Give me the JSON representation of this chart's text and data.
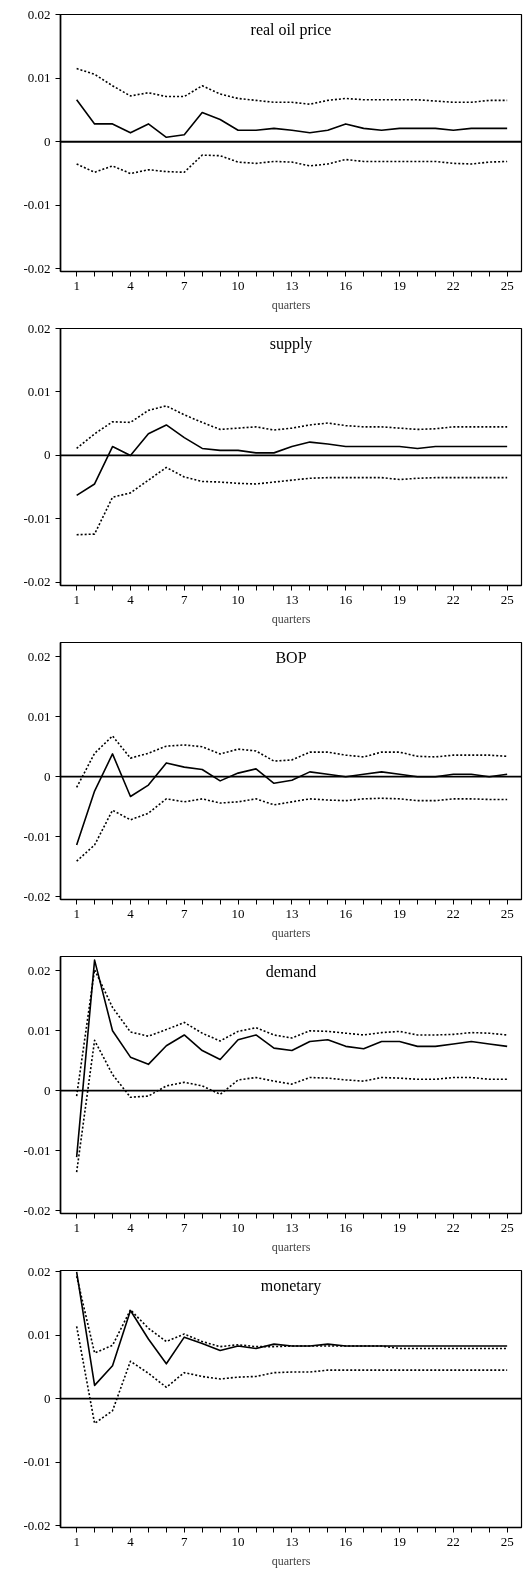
{
  "chart_data": [
    {
      "type": "line",
      "title": "real oil price",
      "xlabel": "quarters",
      "x": [
        1,
        2,
        3,
        4,
        5,
        6,
        7,
        8,
        9,
        10,
        11,
        12,
        13,
        14,
        15,
        16,
        17,
        18,
        19,
        20,
        21,
        22,
        23,
        24,
        25
      ],
      "xlim": [
        0.1,
        25.8
      ],
      "ylim": [
        -0.0204,
        0.02
      ],
      "grid": false,
      "xticks": [
        1,
        {
          "value": 2,
          "label": null
        },
        {
          "value": 3,
          "label": null
        },
        4,
        {
          "value": 5,
          "label": null
        },
        {
          "value": 6,
          "label": null
        },
        7,
        {
          "value": 8,
          "label": null
        },
        {
          "value": 9,
          "label": null
        },
        10,
        {
          "value": 11,
          "label": null
        },
        {
          "value": 12,
          "label": null
        },
        13,
        {
          "value": 14,
          "label": null
        },
        {
          "value": 15,
          "label": null
        },
        16,
        {
          "value": 17,
          "label": null
        },
        {
          "value": 18,
          "label": null
        },
        19,
        {
          "value": 20,
          "label": null
        },
        {
          "value": 21,
          "label": null
        },
        22,
        {
          "value": 23,
          "label": null
        },
        {
          "value": 24,
          "label": null
        },
        25
      ],
      "yticks": [
        -0.02,
        -0.01,
        0,
        0.01,
        0.02
      ],
      "ref_lines": [
        {
          "axis": "y",
          "value": 0,
          "label": null,
          "color": "#000000",
          "line_style": "solid"
        }
      ],
      "series": [
        {
          "color": "#000000",
          "line_style": "solid",
          "values": [
            0.0066,
            0.0028,
            0.0028,
            0.0014,
            0.0028,
            0.0007,
            0.0011,
            0.0046,
            0.0035,
            0.0018,
            0.0018,
            0.0021,
            0.0018,
            0.0014,
            0.0018,
            0.0028,
            0.0021,
            0.0018,
            0.0021,
            0.0021,
            0.0021,
            0.0018,
            0.0021,
            0.0021,
            0.0021
          ]
        },
        {
          "color": "#000000",
          "line_style": "dotted",
          "values": [
            0.0115,
            0.0106,
            0.0088,
            0.0072,
            0.0077,
            0.0071,
            0.0071,
            0.0088,
            0.0075,
            0.0068,
            0.0065,
            0.0062,
            0.0062,
            0.0059,
            0.0065,
            0.0068,
            0.0066,
            0.0066,
            0.0066,
            0.0066,
            0.0064,
            0.0062,
            0.0062,
            0.0065,
            0.0065
          ]
        },
        {
          "color": "#000000",
          "line_style": "dotted",
          "values": [
            -0.0035,
            -0.0048,
            -0.0038,
            -0.005,
            -0.0044,
            -0.0047,
            -0.0048,
            -0.0021,
            -0.0022,
            -0.0032,
            -0.0034,
            -0.0031,
            -0.0032,
            -0.0038,
            -0.0035,
            -0.0028,
            -0.0031,
            -0.0031,
            -0.0031,
            -0.0031,
            -0.0031,
            -0.0034,
            -0.0035,
            -0.0032,
            -0.0031
          ]
        }
      ]
    },
    {
      "type": "line",
      "title": "supply",
      "xlabel": "quarters",
      "x": [
        1,
        2,
        3,
        4,
        5,
        6,
        7,
        8,
        9,
        10,
        11,
        12,
        13,
        14,
        15,
        16,
        17,
        18,
        19,
        20,
        21,
        22,
        23,
        24,
        25
      ],
      "xlim": [
        0.1,
        25.8
      ],
      "ylim": [
        -0.0205,
        0.02
      ],
      "grid": false,
      "xticks": [
        1,
        {
          "value": 2,
          "label": null
        },
        {
          "value": 3,
          "label": null
        },
        4,
        {
          "value": 5,
          "label": null
        },
        {
          "value": 6,
          "label": null
        },
        7,
        {
          "value": 8,
          "label": null
        },
        {
          "value": 9,
          "label": null
        },
        10,
        {
          "value": 11,
          "label": null
        },
        {
          "value": 12,
          "label": null
        },
        13,
        {
          "value": 14,
          "label": null
        },
        {
          "value": 15,
          "label": null
        },
        16,
        {
          "value": 17,
          "label": null
        },
        {
          "value": 18,
          "label": null
        },
        19,
        {
          "value": 20,
          "label": null
        },
        {
          "value": 21,
          "label": null
        },
        22,
        {
          "value": 23,
          "label": null
        },
        {
          "value": 24,
          "label": null
        },
        25
      ],
      "yticks": [
        -0.02,
        -0.01,
        0,
        0.01,
        0.02
      ],
      "ref_lines": [
        {
          "axis": "y",
          "value": 0,
          "label": null,
          "color": "#000000",
          "line_style": "solid"
        }
      ],
      "series": [
        {
          "color": "#000000",
          "line_style": "solid",
          "values": [
            -0.0063,
            -0.0045,
            0.0014,
            0,
            0.0034,
            0.0048,
            0.0028,
            0.0011,
            0.0008,
            0.0008,
            0.0004,
            0.0004,
            0.0014,
            0.0021,
            0.0018,
            0.0014,
            0.0014,
            0.0014,
            0.0014,
            0.0011,
            0.0014,
            0.0014,
            0.0014,
            0.0014,
            0.0014
          ]
        },
        {
          "color": "#000000",
          "line_style": "dotted",
          "values": [
            0.0011,
            0.0034,
            0.0053,
            0.0052,
            0.0071,
            0.0078,
            0.0064,
            0.0052,
            0.0041,
            0.0043,
            0.0045,
            0.004,
            0.0043,
            0.0048,
            0.0051,
            0.0047,
            0.0045,
            0.0045,
            0.0043,
            0.0041,
            0.0042,
            0.0045,
            0.0045,
            0.0045,
            0.0045
          ]
        },
        {
          "color": "#000000",
          "line_style": "dotted",
          "values": [
            -0.0125,
            -0.0124,
            -0.0066,
            -0.0059,
            -0.0039,
            -0.0019,
            -0.0034,
            -0.0041,
            -0.0042,
            -0.0044,
            -0.0045,
            -0.0042,
            -0.0039,
            -0.0036,
            -0.0035,
            -0.0035,
            -0.0035,
            -0.0035,
            -0.0038,
            -0.0036,
            -0.0035,
            -0.0035,
            -0.0035,
            -0.0035,
            -0.0035
          ]
        }
      ]
    },
    {
      "type": "line",
      "title": "BOP",
      "xlabel": "quarters",
      "x": [
        1,
        2,
        3,
        4,
        5,
        6,
        7,
        8,
        9,
        10,
        11,
        12,
        13,
        14,
        15,
        16,
        17,
        18,
        19,
        20,
        21,
        22,
        23,
        24,
        25
      ],
      "xlim": [
        0.1,
        25.8
      ],
      "ylim": [
        -0.0205,
        0.0224
      ],
      "grid": false,
      "xticks": [
        1,
        {
          "value": 2,
          "label": null
        },
        {
          "value": 3,
          "label": null
        },
        4,
        {
          "value": 5,
          "label": null
        },
        {
          "value": 6,
          "label": null
        },
        7,
        {
          "value": 8,
          "label": null
        },
        {
          "value": 9,
          "label": null
        },
        10,
        {
          "value": 11,
          "label": null
        },
        {
          "value": 12,
          "label": null
        },
        13,
        {
          "value": 14,
          "label": null
        },
        {
          "value": 15,
          "label": null
        },
        16,
        {
          "value": 17,
          "label": null
        },
        {
          "value": 18,
          "label": null
        },
        19,
        {
          "value": 20,
          "label": null
        },
        {
          "value": 21,
          "label": null
        },
        22,
        {
          "value": 23,
          "label": null
        },
        {
          "value": 24,
          "label": null
        },
        25
      ],
      "yticks": [
        -0.02,
        -0.01,
        0,
        0.01,
        0.02
      ],
      "ref_lines": [
        {
          "axis": "y",
          "value": 0,
          "label": null,
          "color": "#000000",
          "line_style": "solid"
        }
      ],
      "series": [
        {
          "color": "#000000",
          "line_style": "solid",
          "values": [
            -0.0114,
            -0.0024,
            0.0038,
            -0.0033,
            -0.0014,
            0.0023,
            0.0016,
            0.0012,
            -0.0007,
            0.0006,
            0.0013,
            -0.0011,
            -0.0006,
            0.0008,
            0.0004,
            0,
            0.0004,
            0.0008,
            0.0004,
            0,
            0,
            0.0004,
            0.0004,
            0,
            0.0004
          ]
        },
        {
          "color": "#000000",
          "line_style": "dotted",
          "values": [
            -0.0018,
            0.0039,
            0.0068,
            0.0031,
            0.0039,
            0.0051,
            0.0053,
            0.005,
            0.0038,
            0.0046,
            0.0043,
            0.0026,
            0.0028,
            0.0041,
            0.0041,
            0.0036,
            0.0033,
            0.0041,
            0.0041,
            0.0034,
            0.0033,
            0.0036,
            0.0036,
            0.0036,
            0.0034
          ]
        },
        {
          "color": "#000000",
          "line_style": "dotted",
          "values": [
            -0.0141,
            -0.0114,
            -0.0056,
            -0.0072,
            -0.0061,
            -0.0037,
            -0.0042,
            -0.0037,
            -0.0044,
            -0.0042,
            -0.0037,
            -0.0047,
            -0.0042,
            -0.0037,
            -0.0039,
            -0.004,
            -0.0037,
            -0.0036,
            -0.0037,
            -0.004,
            -0.004,
            -0.0037,
            -0.0037,
            -0.0038,
            -0.0038
          ]
        }
      ]
    },
    {
      "type": "line",
      "title": "demand",
      "xlabel": "quarters",
      "x": [
        1,
        2,
        3,
        4,
        5,
        6,
        7,
        8,
        9,
        10,
        11,
        12,
        13,
        14,
        15,
        16,
        17,
        18,
        19,
        20,
        21,
        22,
        23,
        24,
        25
      ],
      "xlim": [
        0.1,
        25.8
      ],
      "ylim": [
        -0.0205,
        0.0224
      ],
      "grid": false,
      "xticks": [
        1,
        {
          "value": 2,
          "label": null
        },
        {
          "value": 3,
          "label": null
        },
        4,
        {
          "value": 5,
          "label": null
        },
        {
          "value": 6,
          "label": null
        },
        7,
        {
          "value": 8,
          "label": null
        },
        {
          "value": 9,
          "label": null
        },
        10,
        {
          "value": 11,
          "label": null
        },
        {
          "value": 12,
          "label": null
        },
        13,
        {
          "value": 14,
          "label": null
        },
        {
          "value": 15,
          "label": null
        },
        16,
        {
          "value": 17,
          "label": null
        },
        {
          "value": 18,
          "label": null
        },
        19,
        {
          "value": 20,
          "label": null
        },
        {
          "value": 21,
          "label": null
        },
        22,
        {
          "value": 23,
          "label": null
        },
        {
          "value": 24,
          "label": null
        },
        25
      ],
      "yticks": [
        -0.02,
        -0.01,
        0,
        0.01,
        0.02
      ],
      "ref_lines": [
        {
          "axis": "y",
          "value": 0,
          "label": null,
          "color": "#000000",
          "line_style": "solid"
        }
      ],
      "series": [
        {
          "color": "#000000",
          "line_style": "solid",
          "values": [
            -0.0111,
            0.0218,
            0.01,
            0.0056,
            0.0044,
            0.0075,
            0.0093,
            0.0067,
            0.0052,
            0.0085,
            0.0093,
            0.0071,
            0.0067,
            0.0082,
            0.0085,
            0.0074,
            0.007,
            0.0082,
            0.0082,
            0.0074,
            0.0074,
            0.0078,
            0.0082,
            0.0078,
            0.0074
          ]
        },
        {
          "color": "#000000",
          "line_style": "dotted",
          "values": [
            -0.0009,
            0.0202,
            0.0139,
            0.0098,
            0.0091,
            0.0102,
            0.0114,
            0.0096,
            0.0083,
            0.0099,
            0.0105,
            0.0093,
            0.0088,
            0.01,
            0.0099,
            0.0096,
            0.0093,
            0.0097,
            0.0099,
            0.0093,
            0.0093,
            0.0094,
            0.0097,
            0.0096,
            0.0093
          ]
        },
        {
          "color": "#000000",
          "line_style": "dotted",
          "values": [
            -0.0136,
            0.0084,
            0.0027,
            -0.0011,
            -0.0009,
            0.0008,
            0.0014,
            0.0008,
            -0.0006,
            0.0018,
            0.0022,
            0.0016,
            0.0011,
            0.0022,
            0.0021,
            0.0018,
            0.0016,
            0.0022,
            0.0021,
            0.0019,
            0.0019,
            0.0022,
            0.0022,
            0.0019,
            0.0019
          ]
        }
      ]
    },
    {
      "type": "line",
      "title": "monetary",
      "xlabel": "quarters",
      "x": [
        1,
        2,
        3,
        4,
        5,
        6,
        7,
        8,
        9,
        10,
        11,
        12,
        13,
        14,
        15,
        16,
        17,
        18,
        19,
        20,
        21,
        22,
        23,
        24,
        25
      ],
      "xlim": [
        0.1,
        25.8
      ],
      "ylim": [
        -0.0203,
        0.0202
      ],
      "grid": false,
      "xticks": [
        1,
        {
          "value": 2,
          "label": null
        },
        {
          "value": 3,
          "label": null
        },
        4,
        {
          "value": 5,
          "label": null
        },
        {
          "value": 6,
          "label": null
        },
        7,
        {
          "value": 8,
          "label": null
        },
        {
          "value": 9,
          "label": null
        },
        10,
        {
          "value": 11,
          "label": null
        },
        {
          "value": 12,
          "label": null
        },
        13,
        {
          "value": 14,
          "label": null
        },
        {
          "value": 15,
          "label": null
        },
        16,
        {
          "value": 17,
          "label": null
        },
        {
          "value": 18,
          "label": null
        },
        19,
        {
          "value": 20,
          "label": null
        },
        {
          "value": 21,
          "label": null
        },
        22,
        {
          "value": 23,
          "label": null
        },
        {
          "value": 24,
          "label": null
        },
        25
      ],
      "yticks": [
        -0.02,
        -0.01,
        0,
        0.01,
        0.02
      ],
      "ref_lines": [
        {
          "axis": "y",
          "value": 0,
          "label": null,
          "color": "#000000",
          "line_style": "solid"
        }
      ],
      "series": [
        {
          "color": "#000000",
          "line_style": "solid",
          "values": [
            0.02,
            0.0021,
            0.0052,
            0.0139,
            0.0094,
            0.0055,
            0.0097,
            0.0087,
            0.0076,
            0.0083,
            0.0079,
            0.0086,
            0.0083,
            0.0083,
            0.0086,
            0.0083,
            0.0083,
            0.0083,
            0.0083,
            0.0083,
            0.0083,
            0.0083,
            0.0083,
            0.0083,
            0.0083
          ]
        },
        {
          "color": "#000000",
          "line_style": "dotted",
          "values": [
            0.0193,
            0.0072,
            0.0084,
            0.014,
            0.0111,
            0.009,
            0.0102,
            0.009,
            0.0082,
            0.0085,
            0.0082,
            0.0082,
            0.0083,
            0.0083,
            0.0083,
            0.0083,
            0.0083,
            0.0083,
            0.0079,
            0.0079,
            0.0079,
            0.0079,
            0.0079,
            0.0079,
            0.0079
          ]
        },
        {
          "color": "#000000",
          "line_style": "dotted",
          "values": [
            0.0114,
            -0.0039,
            -0.0019,
            0.0059,
            0.004,
            0.0018,
            0.0041,
            0.0035,
            0.0031,
            0.0034,
            0.0035,
            0.0041,
            0.0042,
            0.0042,
            0.0045,
            0.0045,
            0.0045,
            0.0045,
            0.0045,
            0.0045,
            0.0045,
            0.0045,
            0.0045,
            0.0045,
            0.0045
          ]
        }
      ]
    }
  ]
}
